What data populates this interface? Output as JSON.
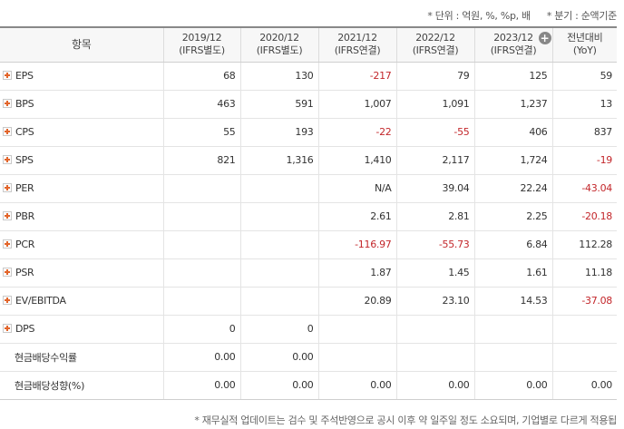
{
  "notes": {
    "unit": "* 단위 : 억원, %, %p, 배",
    "period": "* 분기 : 순액기준",
    "footnote": "* 재무실적 업데이트는 검수 및 주석반영으로 공시 이후 약 일주일 정도 소요되며, 기업별로 다르게 적용됩"
  },
  "header": {
    "item": "항목",
    "columns": [
      {
        "line1": "2019/12",
        "line2": "(IFRS별도)"
      },
      {
        "line1": "2020/12",
        "line2": "(IFRS별도)"
      },
      {
        "line1": "2021/12",
        "line2": "(IFRS연결)"
      },
      {
        "line1": "2022/12",
        "line2": "(IFRS연결)"
      },
      {
        "line1": "2023/12",
        "line2": "(IFRS연결)"
      },
      {
        "line1": "전년대비",
        "line2": "(YoY)"
      }
    ],
    "expand_symbol": "+"
  },
  "rows": [
    {
      "label": "EPS",
      "values": [
        "68",
        "130",
        "-217",
        "79",
        "125",
        "59"
      ]
    },
    {
      "label": "BPS",
      "values": [
        "463",
        "591",
        "1,007",
        "1,091",
        "1,237",
        "13"
      ]
    },
    {
      "label": "CPS",
      "values": [
        "55",
        "193",
        "-22",
        "-55",
        "406",
        "837"
      ]
    },
    {
      "label": "SPS",
      "values": [
        "821",
        "1,316",
        "1,410",
        "2,117",
        "1,724",
        "-19"
      ]
    },
    {
      "label": "PER",
      "values": [
        "",
        "",
        "N/A",
        "39.04",
        "22.24",
        "-43.04"
      ]
    },
    {
      "label": "PBR",
      "values": [
        "",
        "",
        "2.61",
        "2.81",
        "2.25",
        "-20.18"
      ]
    },
    {
      "label": "PCR",
      "values": [
        "",
        "",
        "-116.97",
        "-55.73",
        "6.84",
        "112.28"
      ]
    },
    {
      "label": "PSR",
      "values": [
        "",
        "",
        "1.87",
        "1.45",
        "1.61",
        "11.18"
      ]
    },
    {
      "label": "EV/EBITDA",
      "values": [
        "",
        "",
        "20.89",
        "23.10",
        "14.53",
        "-37.08"
      ]
    },
    {
      "label": "DPS",
      "values": [
        "0",
        "0",
        "",
        "",
        "",
        ""
      ]
    },
    {
      "label": "현금배당수익률",
      "values": [
        "0.00",
        "0.00",
        "",
        "",
        "",
        ""
      ]
    },
    {
      "label": "현금배당성향(%)",
      "values": [
        "0.00",
        "0.00",
        "0.00",
        "0.00",
        "0.00",
        "0.00"
      ]
    }
  ]
}
